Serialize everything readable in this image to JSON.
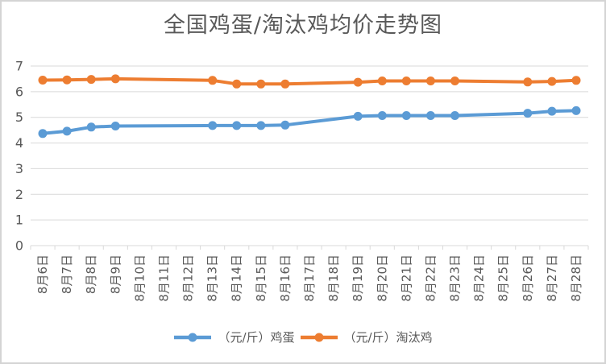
{
  "page": {
    "background": "#ffffff",
    "border_color": "#d4d4d4"
  },
  "chart_data": {
    "type": "line",
    "title": "全国鸡蛋/淘汰鸡均价走势图",
    "categories": [
      "8月6日",
      "8月7日",
      "8月8日",
      "8月9日",
      "8月10日",
      "8月11日",
      "8月12日",
      "8月13日",
      "8月14日",
      "8月15日",
      "8月16日",
      "8月17日",
      "8月18日",
      "8月19日",
      "8月20日",
      "8月21日",
      "8月22日",
      "8月23日",
      "8月24日",
      "8月25日",
      "8月26日",
      "8月27日",
      "8月28日"
    ],
    "series": [
      {
        "name": "（元/斤）鸡蛋",
        "color": "#5B9BD5",
        "values": [
          4.37,
          4.46,
          4.62,
          4.66,
          null,
          null,
          null,
          4.68,
          4.68,
          4.68,
          4.7,
          null,
          null,
          5.04,
          5.07,
          5.07,
          5.07,
          5.07,
          null,
          null,
          5.16,
          5.24,
          5.26
        ]
      },
      {
        "name": "（元/斤）淘汰鸡",
        "color": "#ED7D31",
        "values": [
          6.45,
          6.46,
          6.48,
          6.5,
          null,
          null,
          null,
          6.44,
          6.3,
          6.3,
          6.3,
          null,
          null,
          6.37,
          6.42,
          6.42,
          6.42,
          6.42,
          null,
          null,
          6.38,
          6.4,
          6.44
        ]
      }
    ],
    "ylim": [
      0,
      7
    ],
    "yticks": [
      0,
      1,
      2,
      3,
      4,
      5,
      6,
      7
    ],
    "grid": "horizontal",
    "legend_position": "bottom",
    "line_gaps_connected": true,
    "colors": {
      "grid": "#D9D9D9",
      "axis_text": "#595959",
      "title": "#595959"
    }
  }
}
